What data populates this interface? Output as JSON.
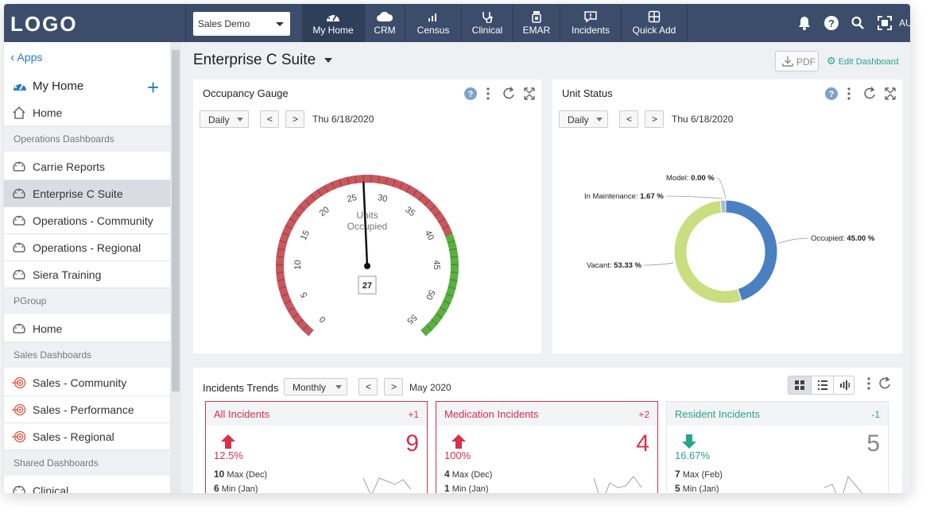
{
  "app": {
    "logo": "LOGO",
    "org_select": "Sales Demo",
    "nav": [
      {
        "label": "My Home",
        "icon": "dashboard-icon"
      },
      {
        "label": "CRM",
        "icon": "cloud-icon"
      },
      {
        "label": "Census",
        "icon": "bar-signal-icon"
      },
      {
        "label": "Clinical",
        "icon": "stethoscope-icon"
      },
      {
        "label": "EMAR",
        "icon": "pill-bottle-icon"
      },
      {
        "label": "Incidents",
        "icon": "alert-message-icon"
      },
      {
        "label": "Quick Add",
        "icon": "grid-plus-icon"
      }
    ],
    "user_initials": "AU"
  },
  "sidebar": {
    "apps_link": "Apps",
    "my_home_title": "My Home",
    "sections": [
      {
        "type": "item",
        "label": "Home",
        "icon": "home-icon"
      },
      {
        "type": "head",
        "label": "Operations Dashboards"
      },
      {
        "type": "item",
        "label": "Carrie Reports",
        "icon": "dashboard-outline-icon"
      },
      {
        "type": "item",
        "label": "Enterprise C Suite",
        "icon": "dashboard-outline-icon",
        "selected": true
      },
      {
        "type": "item",
        "label": "Operations - Community",
        "icon": "dashboard-outline-icon"
      },
      {
        "type": "item",
        "label": "Operations - Regional",
        "icon": "dashboard-outline-icon"
      },
      {
        "type": "item",
        "label": "Siera Training",
        "icon": "dashboard-outline-icon"
      },
      {
        "type": "head",
        "label": "PGroup"
      },
      {
        "type": "item",
        "label": "Home",
        "icon": "dashboard-outline-icon"
      },
      {
        "type": "head",
        "label": "Sales Dashboards"
      },
      {
        "type": "item",
        "label": "Sales - Community",
        "icon": "target-icon"
      },
      {
        "type": "item",
        "label": "Sales - Performance",
        "icon": "target-icon"
      },
      {
        "type": "item",
        "label": "Sales - Regional",
        "icon": "target-icon"
      },
      {
        "type": "head",
        "label": "Shared Dashboards"
      },
      {
        "type": "item",
        "label": "Clinical",
        "icon": "dashboard-outline-icon"
      }
    ]
  },
  "main": {
    "title": "Enterprise C Suite",
    "pdf_label": "PDF",
    "edit_label": "Edit Dashboard",
    "occupancy": {
      "title": "Occupancy Gauge",
      "period": "Daily",
      "date": "Thu 6/18/2020",
      "gauge_label_1": "Units",
      "gauge_label_2": "Occupied",
      "value": 27,
      "value_text": "27",
      "min": 0,
      "max": 55,
      "ticks": [
        "0",
        "5",
        "10",
        "15",
        "20",
        "25",
        "30",
        "35",
        "40",
        "45",
        "50",
        "55"
      ],
      "red_end": 41
    },
    "unit_status": {
      "title": "Unit Status",
      "period": "Daily",
      "date": "Thu 6/18/2020",
      "slices": [
        {
          "name": "Occupied",
          "value": 45.0,
          "value_text": "45.00 %",
          "color": "#4a7fc1"
        },
        {
          "name": "Vacant",
          "value": 53.33,
          "value_text": "53.33 %",
          "color": "#c9de7f"
        },
        {
          "name": "In Maintenance",
          "value": 1.67,
          "value_text": "1.67 %",
          "color": "#aabbd0"
        },
        {
          "name": "Model",
          "value": 0.0,
          "value_text": "0.00 %",
          "color": "#999999"
        }
      ]
    },
    "incidents": {
      "title": "Incidents Trends",
      "period": "Monthly",
      "date": "May 2020",
      "cards": [
        {
          "name": "All Incidents",
          "delta": "+1",
          "value": "9",
          "pct": "12.5%",
          "max_val": "10",
          "max_lbl": "Max (Dec)",
          "min_val": "6",
          "min_lbl": "Min (Jan)",
          "trend": "up",
          "color": "#d6304b"
        },
        {
          "name": "Medication Incidents",
          "delta": "+2",
          "value": "4",
          "pct": "100%",
          "max_val": "4",
          "max_lbl": "Max (Dec)",
          "min_val": "1",
          "min_lbl": "Min (Jan)",
          "trend": "up",
          "color": "#d6304b"
        },
        {
          "name": "Resident Incidents",
          "delta": "-1",
          "value": "5",
          "pct": "16.67%",
          "max_val": "7",
          "max_lbl": "Max (Feb)",
          "min_val": "5",
          "min_lbl": "Min (Jan)",
          "trend": "down",
          "color": "#2aa38e"
        }
      ]
    }
  }
}
